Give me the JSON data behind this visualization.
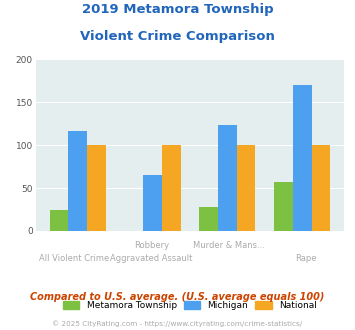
{
  "title_line1": "2019 Metamora Township",
  "title_line2": "Violent Crime Comparison",
  "series": {
    "Metamora Township": [
      25,
      0,
      28,
      57
    ],
    "Michigan": [
      116,
      65,
      123,
      170
    ],
    "National": [
      100,
      100,
      100,
      100
    ]
  },
  "colors": {
    "Metamora Township": "#7dc142",
    "Michigan": "#4d9fef",
    "National": "#f5a623"
  },
  "top_labels": [
    "",
    "Robbery",
    "Murder & Mans...",
    ""
  ],
  "bottom_labels": [
    "All Violent Crime",
    "Aggravated Assault",
    "",
    "Rape"
  ],
  "ylim": [
    0,
    200
  ],
  "yticks": [
    0,
    50,
    100,
    150,
    200
  ],
  "background_color": "#e4eeee",
  "title_color": "#2266bb",
  "footer_note": "Compared to U.S. average. (U.S. average equals 100)",
  "copyright": "© 2025 CityRating.com - https://www.cityrating.com/crime-statistics/",
  "bar_width": 0.25
}
